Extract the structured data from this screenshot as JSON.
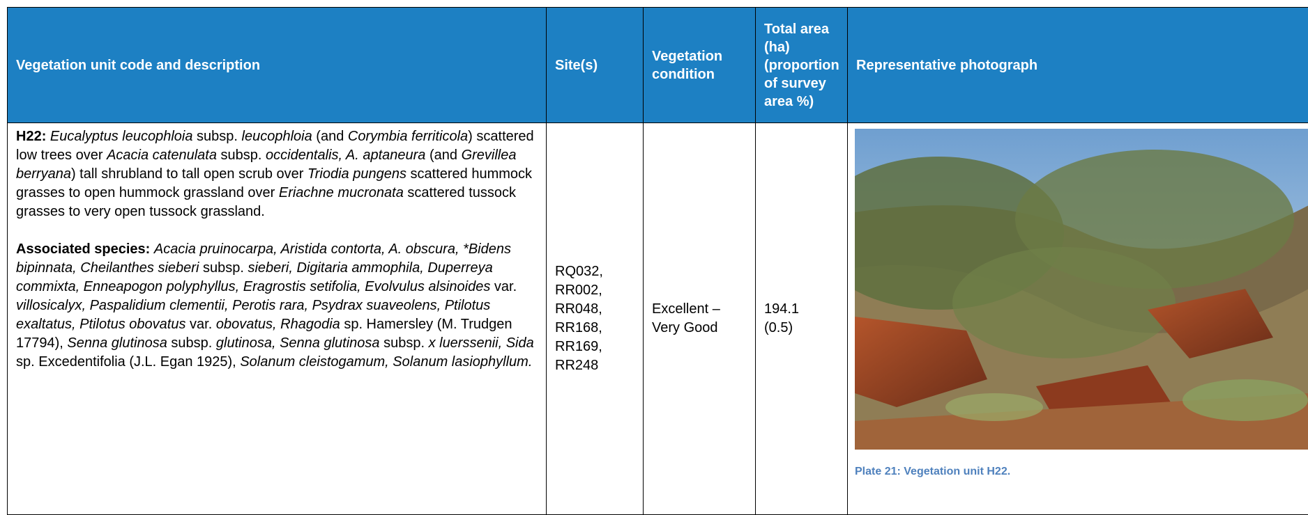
{
  "table": {
    "header": [
      "Vegetation unit code and description",
      "Site(s)",
      "Vegetation condition",
      "Total area (ha) (proportion of survey area %)",
      "Representative photograph"
    ],
    "rows": [
      {
        "description": [
          {
            "runs": [
              {
                "text": "H22: ",
                "style": "bold"
              },
              {
                "text": "Eucalyptus leucophloia",
                "style": "italic"
              },
              {
                "text": " subsp. ",
                "style": "plain"
              },
              {
                "text": "leucophloia",
                "style": "italic"
              },
              {
                "text": " (and ",
                "style": "plain"
              },
              {
                "text": "Corymbia ferriticola",
                "style": "italic"
              },
              {
                "text": ") scattered low trees over ",
                "style": "plain"
              },
              {
                "text": "Acacia catenulata",
                "style": "italic"
              },
              {
                "text": " subsp. ",
                "style": "plain"
              },
              {
                "text": "occidentalis, A. aptaneura",
                "style": "italic"
              },
              {
                "text": " (and ",
                "style": "plain"
              },
              {
                "text": "Grevillea berryana",
                "style": "italic"
              },
              {
                "text": ") tall shrubland to tall open scrub over ",
                "style": "plain"
              },
              {
                "text": "Triodia pungens",
                "style": "italic"
              },
              {
                "text": " scattered hummock grasses to open hummock grassland over ",
                "style": "plain"
              },
              {
                "text": "Eriachne mucronata",
                "style": "italic"
              },
              {
                "text": " scattered tussock grasses to very open tussock grassland.",
                "style": "plain"
              }
            ]
          },
          {
            "runs": [
              {
                "text": "Associated species: ",
                "style": "bold"
              },
              {
                "text": "Acacia pruinocarpa, Aristida contorta, A. obscura, *Bidens bipinnata, Cheilanthes sieberi",
                "style": "italic"
              },
              {
                "text": " subsp. ",
                "style": "plain"
              },
              {
                "text": "sieberi, Digitaria ammophila, Duperreya commixta, Enneapogon polyphyllus, Eragrostis setifolia, Evolvulus alsinoides",
                "style": "italic"
              },
              {
                "text": " var. ",
                "style": "plain"
              },
              {
                "text": "villosicalyx, Paspalidium clementii, Perotis rara, Psydrax suaveolens, Ptilotus exaltatus, Ptilotus obovatus",
                "style": "italic"
              },
              {
                "text": " var. ",
                "style": "plain"
              },
              {
                "text": "obovatus, Rhagodia",
                "style": "italic"
              },
              {
                "text": " sp. Hamersley (M. Trudgen 17794), ",
                "style": "plain"
              },
              {
                "text": "Senna glutinosa",
                "style": "italic"
              },
              {
                "text": " subsp. ",
                "style": "plain"
              },
              {
                "text": "glutinosa, Senna glutinosa",
                "style": "italic"
              },
              {
                "text": " subsp. ",
                "style": "plain"
              },
              {
                "text": "x luerssenii, Sida",
                "style": "italic"
              },
              {
                "text": " sp. Excedentifolia (J.L. Egan 1925), ",
                "style": "plain"
              },
              {
                "text": "Solanum cleistogamum, Solanum lasiophyllum.",
                "style": "italic"
              }
            ]
          }
        ],
        "sites": [
          "RQ032,",
          "RR002,",
          "RR048,",
          "RR168,",
          "RR169,",
          "RR248"
        ],
        "condition": "Excellent – Very Good",
        "area": "194.1",
        "proportion": "(0.5)",
        "caption": "Plate 21: Vegetation unit H22."
      }
    ]
  }
}
